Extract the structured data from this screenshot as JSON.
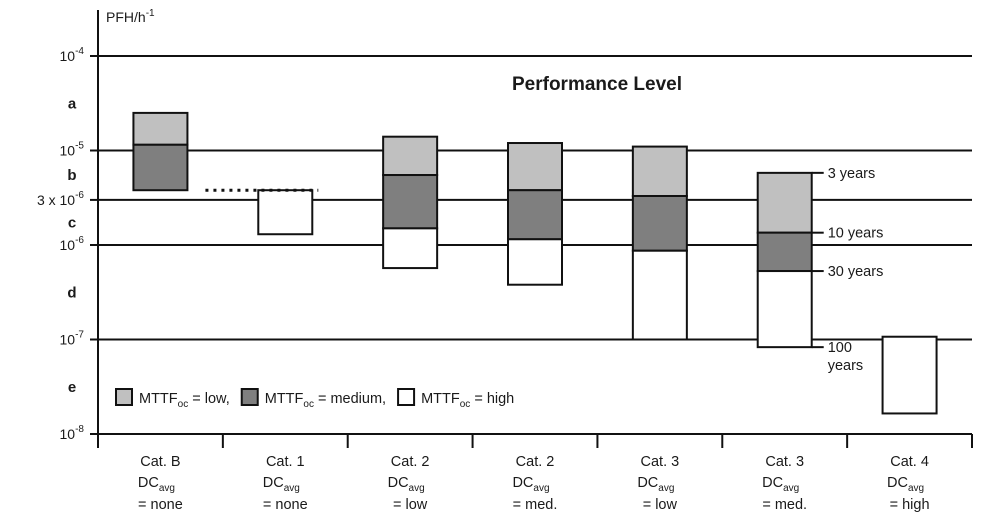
{
  "chart_data": {
    "type": "bar",
    "title": "Performance Level",
    "ylabel": {
      "base": "PFH/h",
      "sup": "-1"
    },
    "y_scale": "log",
    "ylim": [
      1e-08,
      0.0001
    ],
    "gridlines": [
      0.0001,
      1e-05,
      3e-06,
      1e-06,
      1e-07
    ],
    "y_ticks": [
      {
        "value": 0.0001,
        "base": "10",
        "sup": "-4"
      },
      {
        "value": 1e-05,
        "base": "10",
        "sup": "-5"
      },
      {
        "value": 3e-06,
        "base": "3 x 10",
        "sup": "-6"
      },
      {
        "value": 1e-06,
        "base": "10",
        "sup": "-6"
      },
      {
        "value": 1e-07,
        "base": "10",
        "sup": "-7"
      },
      {
        "value": 1e-08,
        "base": "10",
        "sup": "-8"
      }
    ],
    "performance_levels": [
      {
        "label": "a",
        "range": [
          1e-05,
          0.0001
        ]
      },
      {
        "label": "b",
        "range": [
          3e-06,
          1e-05
        ]
      },
      {
        "label": "c",
        "range": [
          1e-06,
          3e-06
        ]
      },
      {
        "label": "d",
        "range": [
          1e-07,
          1e-06
        ]
      },
      {
        "label": "e",
        "range": [
          1e-08,
          1e-07
        ]
      }
    ],
    "categories": [
      {
        "cat": "Cat. B",
        "dc": "DC",
        "dc_sub": "avg",
        "dc_val": "= none"
      },
      {
        "cat": "Cat. 1",
        "dc": "DC",
        "dc_sub": "avg",
        "dc_val": "= none"
      },
      {
        "cat": "Cat. 2",
        "dc": "DC",
        "dc_sub": "avg",
        "dc_val": "= low"
      },
      {
        "cat": "Cat. 2",
        "dc": "DC",
        "dc_sub": "avg",
        "dc_val": "= med."
      },
      {
        "cat": "Cat. 3",
        "dc": "DC",
        "dc_sub": "avg",
        "dc_val": "= low"
      },
      {
        "cat": "Cat. 3",
        "dc": "DC",
        "dc_sub": "avg",
        "dc_val": "= med."
      },
      {
        "cat": "Cat. 4",
        "dc": "DC",
        "dc_sub": "avg",
        "dc_val": "= high"
      }
    ],
    "series": [
      {
        "key": "low",
        "legend_pre": "MTTF",
        "legend_sub": "oc",
        "legend_post": " = low,",
        "color": "#c0c0c0"
      },
      {
        "key": "medium",
        "legend_pre": "MTTF",
        "legend_sub": "oc",
        "legend_post": " = medium,",
        "color": "#7f7f7f"
      },
      {
        "key": "high",
        "legend_pre": "MTTF",
        "legend_sub": "oc",
        "legend_post": " = high",
        "color": "#ffffff"
      }
    ],
    "bars": [
      {
        "category": 0,
        "segments": [
          {
            "series": "low",
            "top": 2.5e-05,
            "bottom": 1.15e-05
          },
          {
            "series": "medium",
            "top": 1.15e-05,
            "bottom": 3.8e-06
          }
        ]
      },
      {
        "category": 1,
        "segments": [
          {
            "series": "high",
            "top": 3.8e-06,
            "bottom": 1.3e-06
          }
        ]
      },
      {
        "category": 2,
        "segments": [
          {
            "series": "low",
            "top": 1.4e-05,
            "bottom": 5.5e-06
          },
          {
            "series": "medium",
            "top": 5.5e-06,
            "bottom": 1.5e-06
          },
          {
            "series": "high",
            "top": 1.5e-06,
            "bottom": 5.7e-07
          }
        ]
      },
      {
        "category": 3,
        "segments": [
          {
            "series": "low",
            "top": 1.2e-05,
            "bottom": 3.8e-06
          },
          {
            "series": "medium",
            "top": 3.8e-06,
            "bottom": 1.15e-06
          },
          {
            "series": "high",
            "top": 1.15e-06,
            "bottom": 3.8e-07
          }
        ]
      },
      {
        "category": 4,
        "segments": [
          {
            "series": "low",
            "top": 1.1e-05,
            "bottom": 3.3e-06
          },
          {
            "series": "medium",
            "top": 3.3e-06,
            "bottom": 8.7e-07
          },
          {
            "series": "high",
            "top": 8.7e-07,
            "bottom": 1e-07
          }
        ]
      },
      {
        "category": 5,
        "segments": [
          {
            "series": "low",
            "top": 5.8e-06,
            "bottom": 1.35e-06
          },
          {
            "series": "medium",
            "top": 1.35e-06,
            "bottom": 5.3e-07
          },
          {
            "series": "high",
            "top": 5.3e-07,
            "bottom": 8.3e-08
          }
        ]
      },
      {
        "category": 6,
        "segments": [
          {
            "series": "high",
            "top": 1.07e-07,
            "bottom": 1.65e-08
          }
        ]
      }
    ],
    "dotted_line": {
      "from_category": 0,
      "to_category": 1,
      "value": 3.8e-06
    },
    "mttf_annotations": [
      {
        "lines": [
          "3 years"
        ],
        "value": 5.8e-06
      },
      {
        "lines": [
          "10 years"
        ],
        "value": 1.35e-06
      },
      {
        "lines": [
          "30 years"
        ],
        "value": 5.3e-07
      },
      {
        "lines": [
          "100",
          "years"
        ],
        "value": 8.3e-08
      }
    ]
  }
}
